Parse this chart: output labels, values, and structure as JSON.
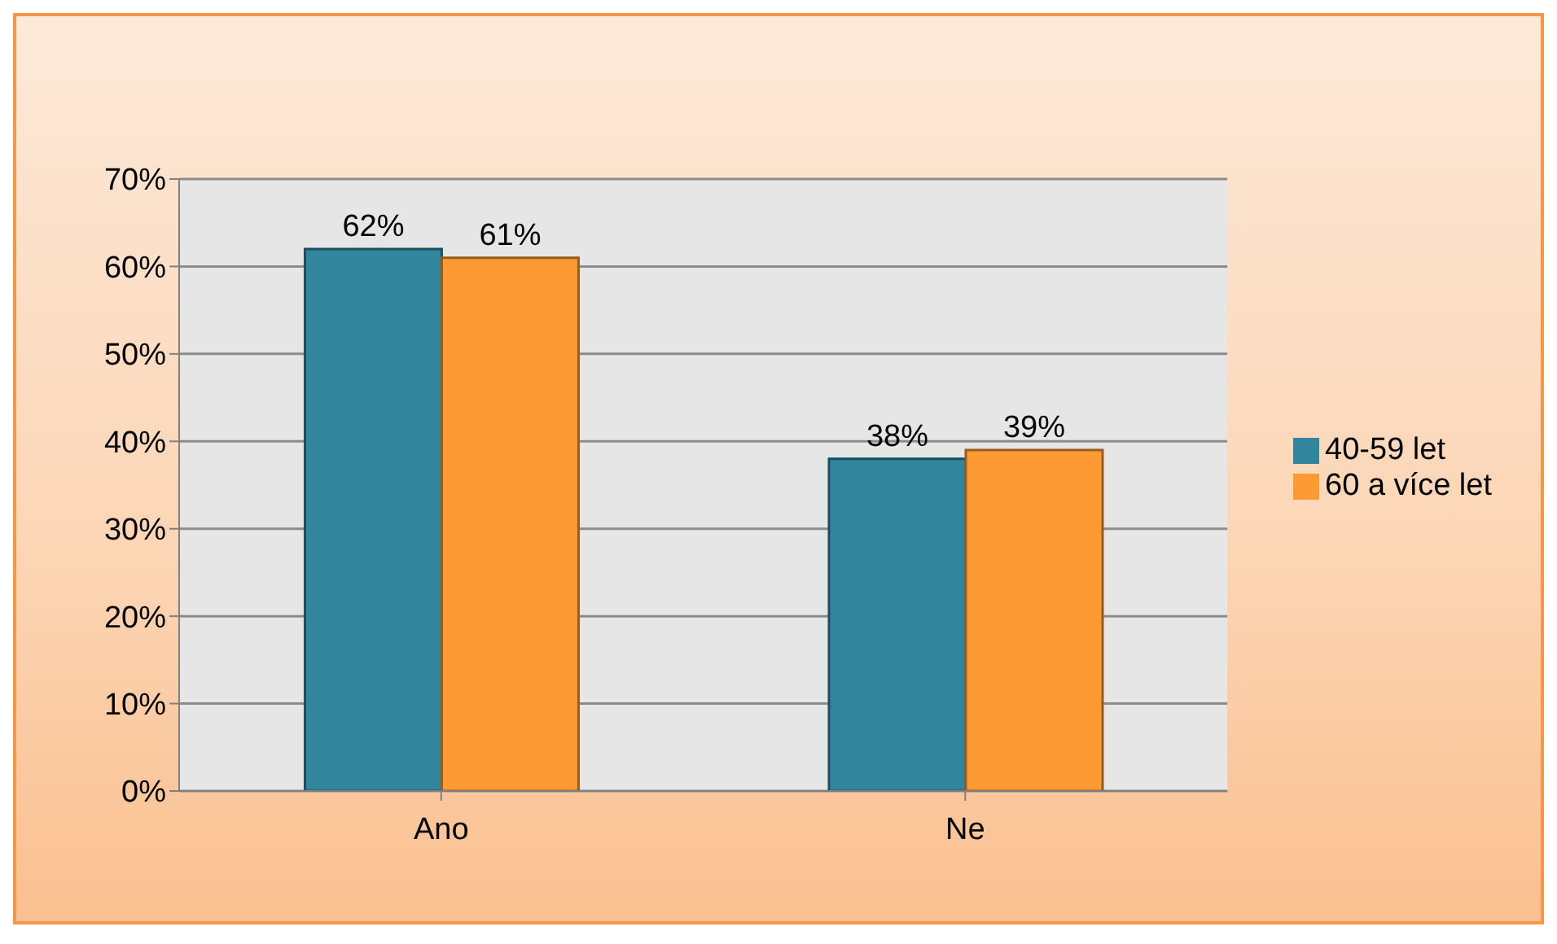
{
  "chart_data": {
    "type": "bar",
    "categories": [
      "Ano",
      "Ne"
    ],
    "series": [
      {
        "name": "40-59 let",
        "color": "#31859c",
        "values": [
          62,
          38
        ],
        "value_labels": [
          "62%",
          "38%"
        ]
      },
      {
        "name": "60 a více let",
        "color": "#fd9a33",
        "values": [
          61,
          39
        ],
        "value_labels": [
          "61%",
          "39%"
        ]
      }
    ],
    "ylim": [
      0,
      70
    ],
    "yticks": [
      {
        "value": 0,
        "label": "0%"
      },
      {
        "value": 10,
        "label": "10%"
      },
      {
        "value": 20,
        "label": "20%"
      },
      {
        "value": 30,
        "label": "30%"
      },
      {
        "value": 40,
        "label": "40%"
      },
      {
        "value": 50,
        "label": "50%"
      },
      {
        "value": 60,
        "label": "60%"
      },
      {
        "value": 70,
        "label": "70%"
      }
    ],
    "grid": "y",
    "legend": "right"
  }
}
